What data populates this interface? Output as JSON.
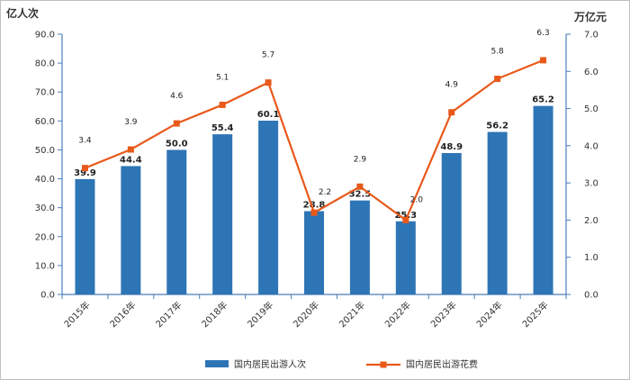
{
  "chart_data": {
    "type": "bar+line",
    "categories": [
      "2015年",
      "2016年",
      "2017年",
      "2018年",
      "2019年",
      "2020年",
      "2021年",
      "2022年",
      "2023年",
      "2024年",
      "2025年"
    ],
    "series": [
      {
        "name": "国内居民出游人次",
        "type": "bar",
        "axis": "left",
        "values": [
          39.9,
          44.4,
          50.0,
          55.4,
          60.1,
          28.8,
          32.5,
          25.3,
          48.9,
          56.2,
          65.2
        ],
        "labels": [
          "39.9",
          "44.4",
          "50.0",
          "55.4",
          "60.1",
          "28.8",
          "32.5",
          "25.3",
          "48.9",
          "56.2",
          "65.2"
        ],
        "color": "#2E75B6"
      },
      {
        "name": "国内居民出游花费",
        "type": "line",
        "axis": "right",
        "values": [
          3.4,
          3.9,
          4.6,
          5.1,
          5.7,
          2.2,
          2.9,
          2.0,
          4.9,
          5.8,
          6.3
        ],
        "labels": [
          "3.4",
          "3.9",
          "4.6",
          "5.1",
          "5.7",
          "2.2",
          "2.9",
          "2.0",
          "4.9",
          "5.8",
          "6.3"
        ],
        "color": "#E8591A"
      }
    ],
    "y_left": {
      "unit": "亿人次",
      "min": 0,
      "max": 90,
      "step": 10,
      "ticks": [
        "0.0",
        "10.0",
        "20.0",
        "30.0",
        "40.0",
        "50.0",
        "60.0",
        "70.0",
        "80.0",
        "90.0"
      ]
    },
    "y_right": {
      "unit": "万亿元",
      "min": 0,
      "max": 7,
      "step": 1,
      "ticks": [
        "0.0",
        "1.0",
        "2.0",
        "3.0",
        "4.0",
        "5.0",
        "6.0",
        "7.0"
      ]
    },
    "grid": false,
    "legend_position": "bottom",
    "axis_color": "#4A7EBB"
  }
}
